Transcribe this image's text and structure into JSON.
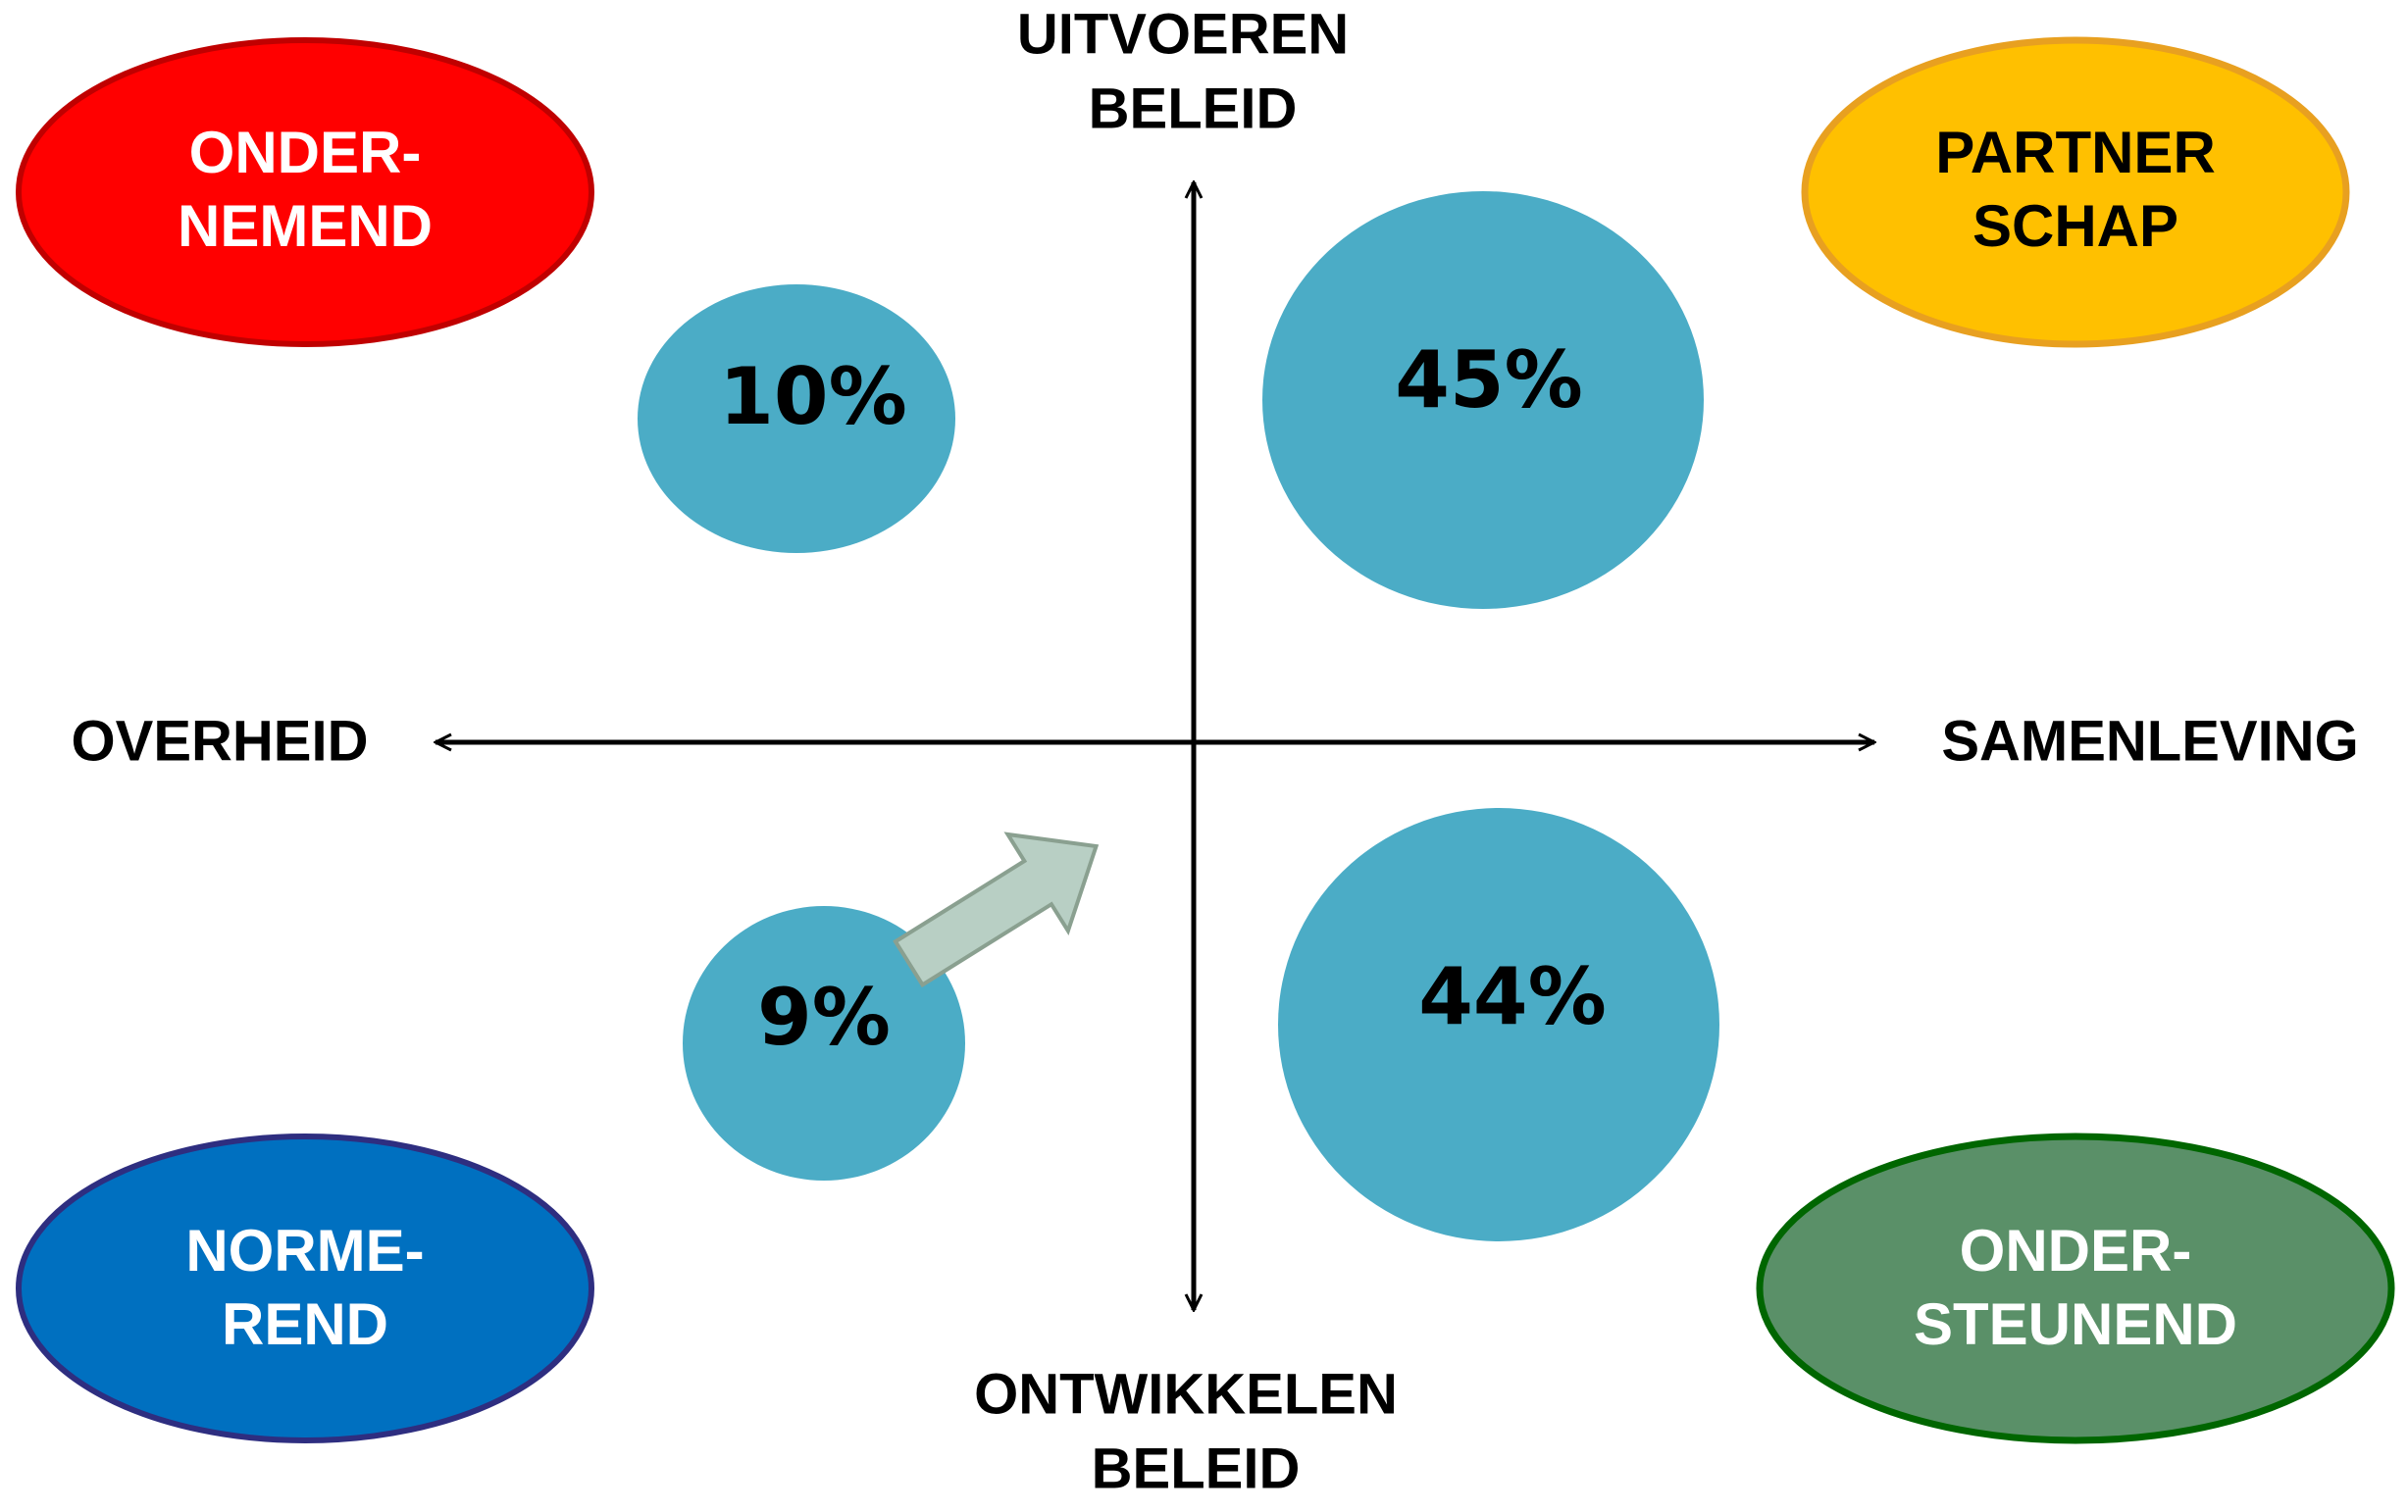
{
  "axes": {
    "top": [
      "UITVOEREN",
      "BELEID"
    ],
    "bottom": [
      "ONTWIKKELEN",
      "BELEID"
    ],
    "left": "OVERHEID",
    "right": "SAMENLEVING"
  },
  "quadrants": [
    {
      "label": [
        "ONDER-",
        "NEMEND"
      ]
    },
    {
      "label": [
        "PARTNER",
        "SCHAP"
      ]
    },
    {
      "label": [
        "NORME-",
        "REND"
      ]
    },
    {
      "label": [
        "ONDER-",
        "STEUNEND"
      ]
    }
  ],
  "bubbles": [
    {
      "label": "10%"
    },
    {
      "label": "45%"
    },
    {
      "label": "9%"
    },
    {
      "label": "44%"
    }
  ]
}
